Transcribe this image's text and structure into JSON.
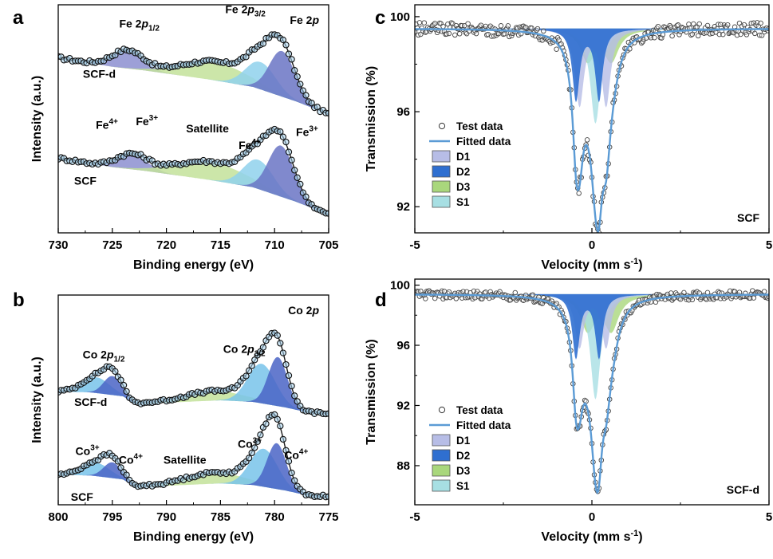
{
  "colors": {
    "Fe_d1": "#8c8fd0",
    "Fe_sat": "#c3e29a",
    "Fe_4": "#8fd1ec",
    "Fe_3": "#6a74c4",
    "Co_sat": "#c3e29a",
    "Co_3": "#78c3ea",
    "Co_4": "#4a64c6",
    "D1": "#b7bde6",
    "D2": "#2f6fd0",
    "D3": "#a9d77c",
    "S1": "#a7dfe3",
    "fit": "#5b9bd5",
    "marker": "#333333"
  },
  "chart_data": [
    {
      "id": "a",
      "panel_label": "a",
      "type": "line",
      "title": "Fe 2p",
      "title_base": "Fe 2",
      "title_italic": "p",
      "xlabel": "Binding energy (eV)",
      "ylabel": "Intensity (a.u.)",
      "xlim": [
        730,
        705
      ],
      "x_ticks": [
        730,
        725,
        720,
        715,
        710,
        705
      ],
      "ylim": [
        -0.2,
        2.3
      ],
      "spectra": [
        {
          "name": "SCF-d",
          "offset": 1.1,
          "baseline": [
            [
              730,
              0.62
            ],
            [
              725,
              0.52
            ],
            [
              722,
              0.48
            ],
            [
              716,
              0.38
            ],
            [
              712,
              0.3
            ],
            [
              708,
              0.14
            ],
            [
              705,
              0.0
            ]
          ],
          "components": [
            {
              "name": "Fe 2p1/2",
              "color": "Fe_d1",
              "center": 723.6,
              "fwhm": 3.4,
              "height": 0.2
            },
            {
              "name": "Satellite",
              "color": "Fe_sat",
              "center": 715.5,
              "fwhm": 7.0,
              "height": 0.2
            },
            {
              "name": "Fe4+",
              "color": "Fe_4",
              "center": 711.3,
              "fwhm": 3.3,
              "height": 0.3
            },
            {
              "name": "Fe3+",
              "color": "Fe_3",
              "center": 709.3,
              "fwhm": 2.8,
              "height": 0.5
            }
          ]
        },
        {
          "name": "SCF",
          "offset": 0.0,
          "baseline": [
            [
              730,
              0.62
            ],
            [
              725,
              0.52
            ],
            [
              722,
              0.48
            ],
            [
              716,
              0.38
            ],
            [
              712,
              0.3
            ],
            [
              708,
              0.14
            ],
            [
              705,
              0.0
            ]
          ],
          "components": [
            {
              "name": "Fe 2p1/2",
              "color": "Fe_d1",
              "center": 723.2,
              "fwhm": 3.4,
              "height": 0.16
            },
            {
              "name": "Satellite",
              "color": "Fe_sat",
              "center": 715.8,
              "fwhm": 7.5,
              "height": 0.2
            },
            {
              "name": "Fe4+",
              "color": "Fe_4",
              "center": 711.5,
              "fwhm": 3.3,
              "height": 0.32
            },
            {
              "name": "Fe3+",
              "color": "Fe_3",
              "center": 709.4,
              "fwhm": 2.8,
              "height": 0.56
            }
          ]
        }
      ],
      "annotations": [
        {
          "id": "lab_p12",
          "base": "Fe 2",
          "it": "p",
          "sub": "1/2",
          "x": 722.5,
          "y": 2.05
        },
        {
          "id": "lab_p32",
          "base": "Fe 2",
          "it": "p",
          "sub": "3/2",
          "x": 712.7,
          "y": 2.21
        },
        {
          "id": "lab_scfd",
          "text": "SCF-d",
          "x": 726.2,
          "y": 1.5
        },
        {
          "id": "lab_fe4a",
          "text": "Fe",
          "sup": "4+",
          "x": 725.5,
          "y": 0.94
        },
        {
          "id": "lab_fe3a",
          "text": "Fe",
          "sup": "3+",
          "x": 721.8,
          "y": 0.98
        },
        {
          "id": "lab_sat",
          "text": "Satellite",
          "x": 716.2,
          "y": 0.9
        },
        {
          "id": "lab_fe4b",
          "text": "Fe",
          "sup": "4+",
          "x": 712.3,
          "y": 0.72
        },
        {
          "id": "lab_fe3b",
          "text": "Fe",
          "sup": "3+",
          "x": 707.0,
          "y": 0.86
        },
        {
          "id": "lab_scf",
          "text": "SCF",
          "x": 727.5,
          "y": 0.33
        }
      ]
    },
    {
      "id": "b",
      "panel_label": "b",
      "type": "line",
      "title": "Co 2p",
      "title_base": "Co 2",
      "title_italic": "p",
      "xlabel": "Binding energy (eV)",
      "ylabel": "Intensity (a.u.)",
      "xlim": [
        800,
        775
      ],
      "x_ticks": [
        800,
        795,
        790,
        785,
        780,
        775
      ],
      "ylim": [
        -0.1,
        2.55
      ],
      "spectra": [
        {
          "name": "SCF-d",
          "offset": 1.05,
          "baseline": [
            [
              800,
              0.28
            ],
            [
              797,
              0.27
            ],
            [
              794,
              0.22
            ],
            [
              793,
              0.13
            ],
            [
              790,
              0.14
            ],
            [
              785,
              0.17
            ],
            [
              782,
              0.15
            ],
            [
              779,
              0.08
            ],
            [
              777,
              0.02
            ],
            [
              775,
              0.0
            ]
          ],
          "components": [
            {
              "name": "Co 2p1/2 a",
              "color": "Co_3",
              "center": 796.5,
              "fwhm": 3.0,
              "height": 0.2
            },
            {
              "name": "Co 2p1/2 b",
              "color": "Co_4",
              "center": 795.0,
              "fwhm": 1.9,
              "height": 0.24
            },
            {
              "name": "Satellite",
              "color": "Co_sat",
              "center": 785.5,
              "fwhm": 6.5,
              "height": 0.12
            },
            {
              "name": "Co3+",
              "color": "Co_3",
              "center": 781.2,
              "fwhm": 3.0,
              "height": 0.5
            },
            {
              "name": "Co4+",
              "color": "Co_4",
              "center": 779.7,
              "fwhm": 2.1,
              "height": 0.62
            }
          ]
        },
        {
          "name": "SCF",
          "offset": 0.0,
          "baseline": [
            [
              800,
              0.28
            ],
            [
              797,
              0.27
            ],
            [
              794,
              0.22
            ],
            [
              793,
              0.13
            ],
            [
              790,
              0.14
            ],
            [
              785,
              0.17
            ],
            [
              782,
              0.15
            ],
            [
              779,
              0.08
            ],
            [
              777,
              0.02
            ],
            [
              775,
              0.0
            ]
          ],
          "components": [
            {
              "name": "Co 2p1/2 a",
              "color": "Co_3",
              "center": 796.5,
              "fwhm": 3.0,
              "height": 0.17
            },
            {
              "name": "Co 2p1/2 b",
              "color": "Co_4",
              "center": 795.0,
              "fwhm": 1.9,
              "height": 0.2
            },
            {
              "name": "Satellite",
              "color": "Co_sat",
              "center": 785.5,
              "fwhm": 6.5,
              "height": 0.14
            },
            {
              "name": "Co3+",
              "color": "Co_3",
              "center": 781.0,
              "fwhm": 3.0,
              "height": 0.48
            },
            {
              "name": "Co4+",
              "color": "Co_4",
              "center": 779.8,
              "fwhm": 2.1,
              "height": 0.58
            }
          ]
        }
      ],
      "annotations": [
        {
          "id": "lab_p12",
          "base": "Co 2",
          "it": "p",
          "sub": "1/2",
          "x": 795.8,
          "y": 1.75
        },
        {
          "id": "lab_p32",
          "base": "Co 2",
          "it": "p",
          "sub": "3/2",
          "x": 782.8,
          "y": 1.82
        },
        {
          "id": "lab_scfd",
          "text": "SCF-d",
          "x": 797.0,
          "y": 1.15
        },
        {
          "id": "lab_co3a",
          "text": "Co",
          "sup": "3+",
          "x": 797.3,
          "y": 0.53
        },
        {
          "id": "lab_co4a",
          "text": "Co",
          "sup": "4+",
          "x": 793.3,
          "y": 0.42
        },
        {
          "id": "lab_sat",
          "text": "Satellite",
          "x": 788.3,
          "y": 0.42
        },
        {
          "id": "lab_co3b",
          "text": "Co",
          "sup": "3+",
          "x": 782.3,
          "y": 0.62
        },
        {
          "id": "lab_co4b",
          "text": "Co",
          "sup": "4+",
          "x": 778.0,
          "y": 0.48
        },
        {
          "id": "lab_scf",
          "text": "SCF",
          "x": 797.8,
          "y": -0.05
        }
      ]
    },
    {
      "id": "c",
      "panel_label": "c",
      "type": "line",
      "sample": "SCF",
      "xlabel": "Velocity (mm s",
      "xlabel_sup": "-1",
      "xlabel_end": ")",
      "ylabel": "Transmission (%)",
      "xlim": [
        -5,
        5
      ],
      "x_ticks": [
        -5,
        0,
        5
      ],
      "ylim": [
        90.9,
        100.5
      ],
      "y_ticks": [
        92,
        96,
        100
      ],
      "y_top": 99.5,
      "components": [
        {
          "name": "D1",
          "color": "D1",
          "doublet": [
            -0.35,
            0.4
          ],
          "depth": 3.2,
          "fwhm": 0.3
        },
        {
          "name": "D2",
          "color": "D2",
          "doublet": [
            -0.45,
            0.2
          ],
          "depth": 3.0,
          "fwhm": 0.25
        },
        {
          "name": "D3",
          "color": "D3",
          "doublet": [
            -0.12,
            0.55
          ],
          "depth": 1.3,
          "fwhm": 0.5
        },
        {
          "name": "S1",
          "color": "S1",
          "singlet": 0.1,
          "depth": 4.0,
          "fwhm": 0.35
        }
      ],
      "legend": [
        "Test data",
        "Fitted data",
        "D1",
        "D2",
        "D3",
        "S1"
      ]
    },
    {
      "id": "d",
      "panel_label": "d",
      "type": "line",
      "sample": "SCF-d",
      "xlabel": "Velocity (mm s",
      "xlabel_sup": "-1",
      "xlabel_end": ")",
      "ylabel": "Transmission (%)",
      "xlim": [
        -5,
        5
      ],
      "x_ticks": [
        -5,
        0,
        5
      ],
      "ylim": [
        85.4,
        100.4
      ],
      "y_ticks": [
        88,
        92,
        96,
        100
      ],
      "y_top": 99.4,
      "components": [
        {
          "name": "D1",
          "color": "D1",
          "doublet": [
            -0.35,
            0.4
          ],
          "depth": 3.5,
          "fwhm": 0.3
        },
        {
          "name": "D2",
          "color": "D2",
          "doublet": [
            -0.45,
            0.2
          ],
          "depth": 4.2,
          "fwhm": 0.25
        },
        {
          "name": "D3",
          "color": "D3",
          "doublet": [
            -0.12,
            0.55
          ],
          "depth": 2.3,
          "fwhm": 0.5
        },
        {
          "name": "S1",
          "color": "S1",
          "singlet": 0.1,
          "depth": 7.0,
          "fwhm": 0.35
        }
      ],
      "legend": [
        "Test data",
        "Fitted data",
        "D1",
        "D2",
        "D3",
        "S1"
      ]
    }
  ]
}
